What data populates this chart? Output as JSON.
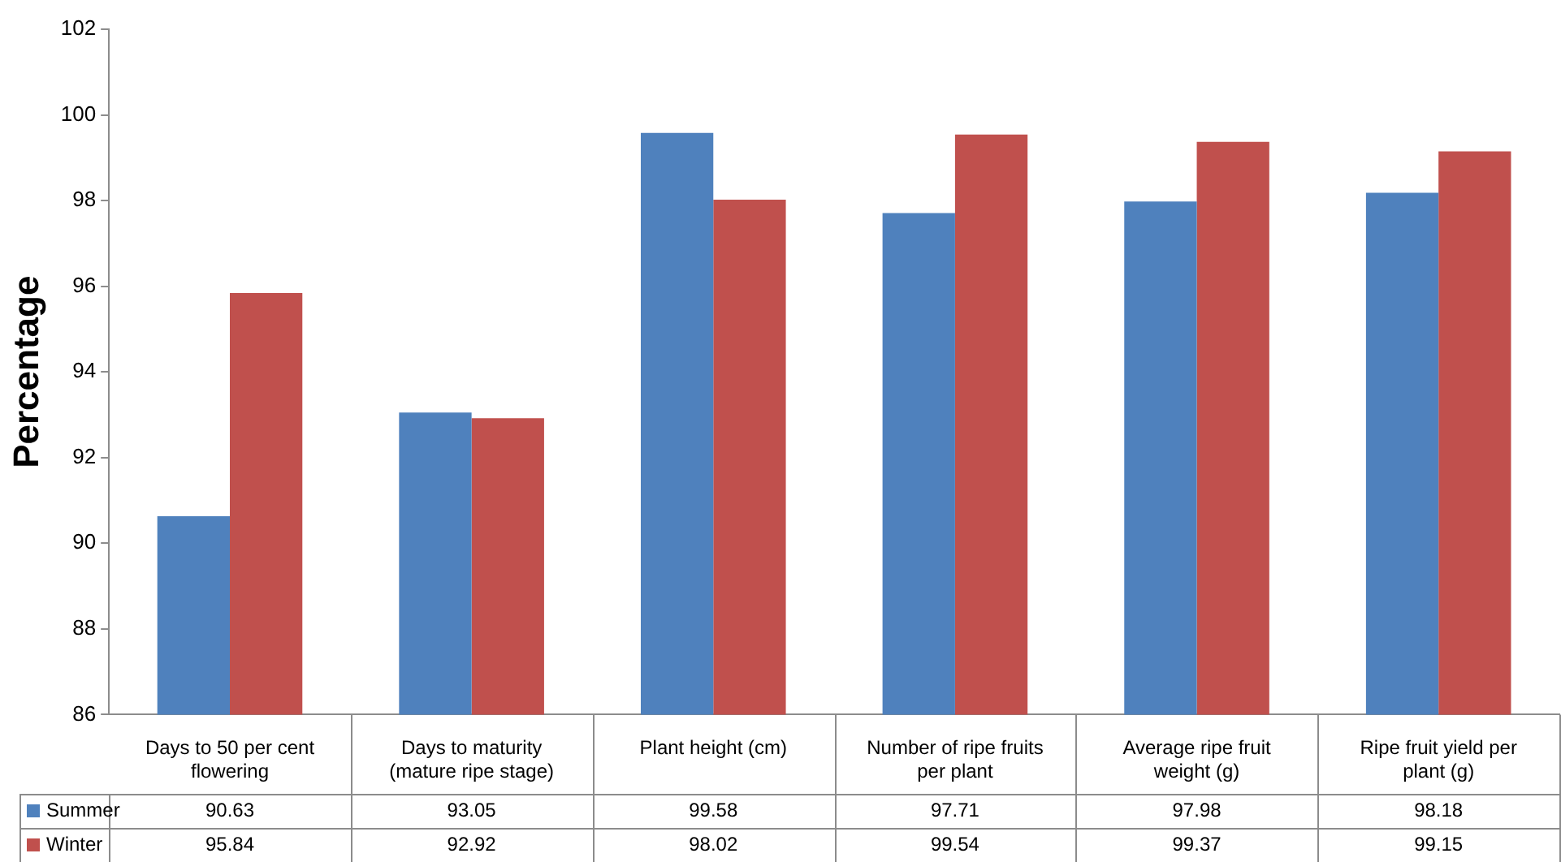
{
  "chart_data": {
    "type": "bar",
    "ylabel": "Percentage",
    "categories": [
      "Days to 50 per cent flowering",
      "Days to maturity (mature ripe stage)",
      "Plant height (cm)",
      "Number of ripe fruits per plant",
      "Average ripe fruit weight (g)",
      "Ripe fruit yield per plant (g)"
    ],
    "series": [
      {
        "name": "Summer",
        "color": "#4f81bd",
        "values": [
          90.63,
          93.05,
          99.58,
          97.71,
          97.98,
          98.18
        ]
      },
      {
        "name": "Winter",
        "color": "#c0504d",
        "values": [
          95.84,
          92.92,
          98.02,
          99.54,
          99.37,
          99.15
        ]
      }
    ],
    "ylim": [
      86,
      102
    ],
    "yticks": [
      86,
      88,
      90,
      92,
      94,
      96,
      98,
      100,
      102
    ],
    "grid": false,
    "legend": "bottom",
    "data_labels": true
  }
}
